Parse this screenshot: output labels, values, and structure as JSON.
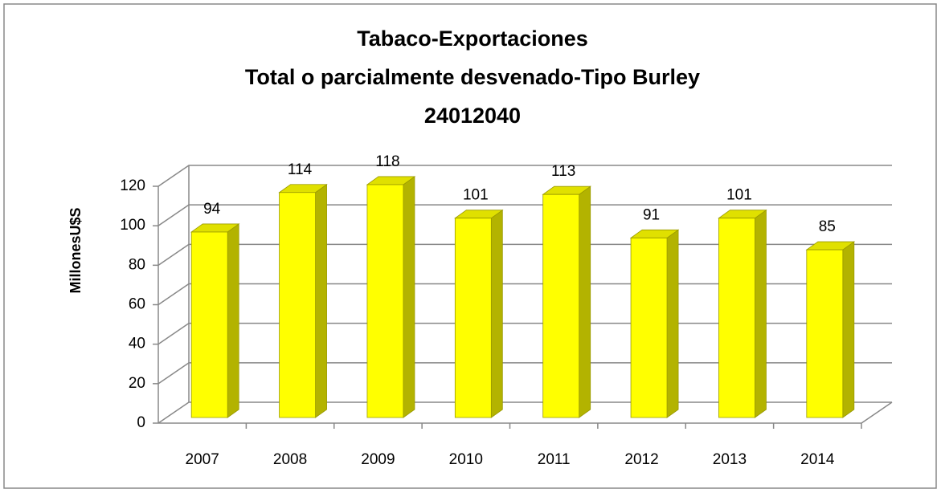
{
  "chart_data": {
    "type": "bar",
    "title": [
      "Tabaco-Exportaciones",
      "Total o parcialmente desvenado-Tipo Burley",
      "24012040"
    ],
    "y_label": "MillonesU$S",
    "categories": [
      "2007",
      "2008",
      "2009",
      "2010",
      "2011",
      "2012",
      "2013",
      "2014"
    ],
    "values": [
      94,
      114,
      118,
      101,
      113,
      91,
      101,
      85
    ],
    "color": "#ffff00",
    "ylim": [
      0,
      120
    ],
    "yticks": [
      0,
      20,
      40,
      60,
      80,
      100,
      120
    ],
    "grid": true
  }
}
